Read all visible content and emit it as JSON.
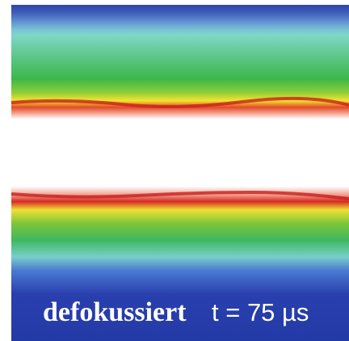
{
  "caption": {
    "label": "defokussiert",
    "time": "t = 75 µs"
  }
}
